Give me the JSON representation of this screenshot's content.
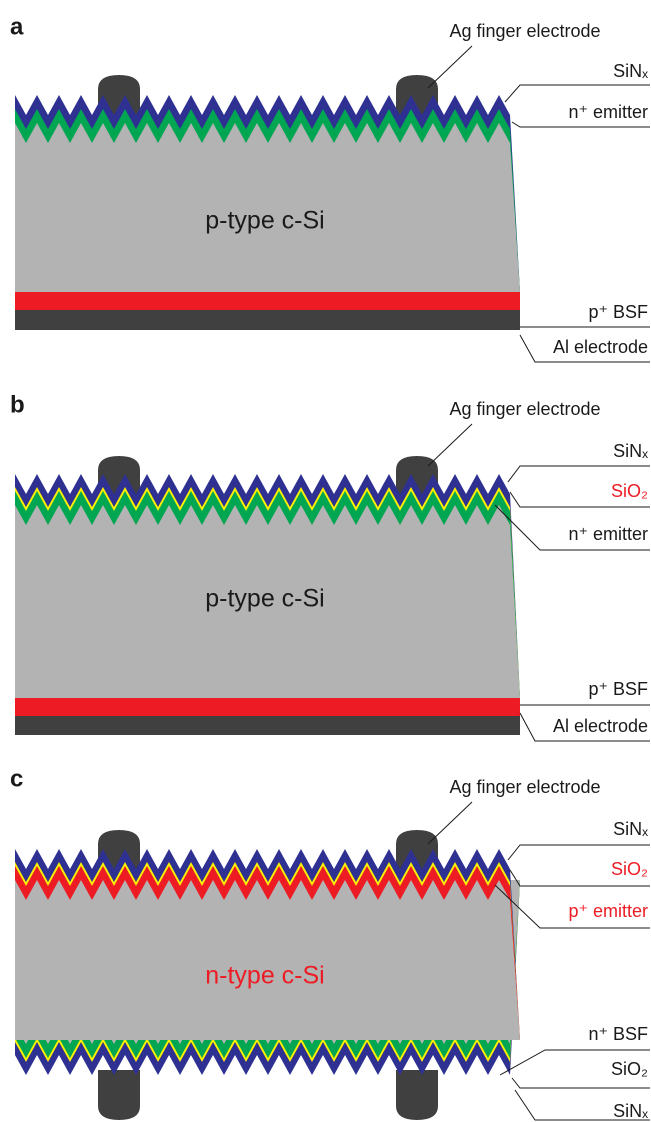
{
  "panels": [
    {
      "letter": "a",
      "finger_label": "Ag finger electrode",
      "body_label": "p-type c-Si",
      "layer_labels": [
        "SiNₓ",
        "n⁺ emitter",
        "p⁺ BSF",
        "Al electrode"
      ]
    },
    {
      "letter": "b",
      "finger_label": "Ag finger electrode",
      "body_label": "p-type c-Si",
      "layer_labels": [
        "SiNₓ",
        "SiO₂",
        "n⁺ emitter",
        "p⁺ BSF",
        "Al electrode"
      ]
    },
    {
      "letter": "c",
      "finger_label": "Ag finger electrode",
      "body_label": "n-type c-Si",
      "layer_labels": [
        "SiNₓ",
        "SiO₂",
        "p⁺ emitter",
        "n⁺ BSF",
        "SiO₂",
        "SiNₓ"
      ]
    }
  ]
}
